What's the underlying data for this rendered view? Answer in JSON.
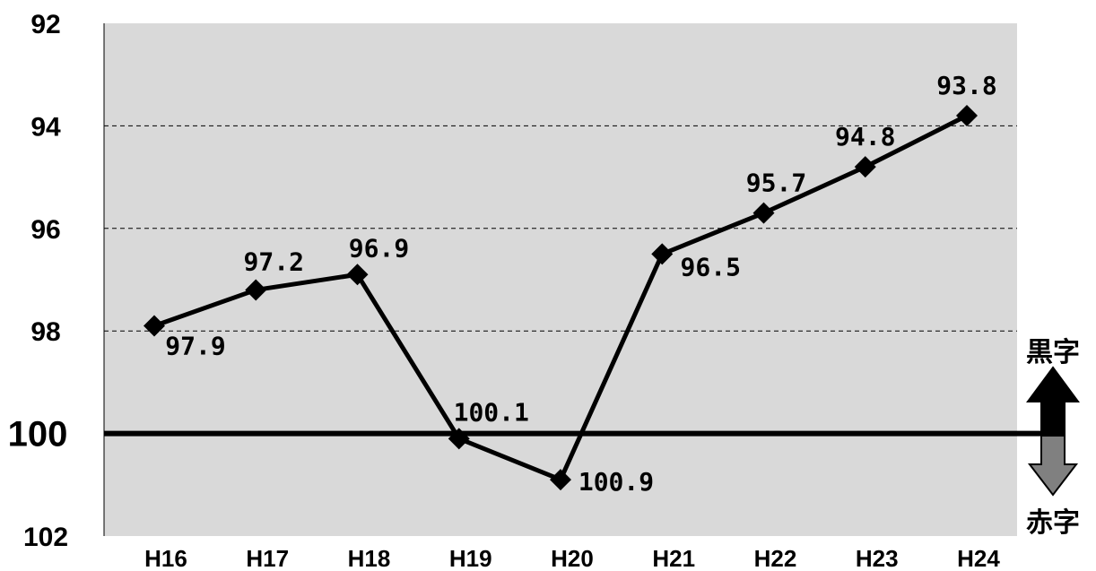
{
  "chart_data": {
    "type": "line",
    "categories": [
      "H16",
      "H17",
      "H18",
      "H19",
      "H20",
      "H21",
      "H22",
      "H23",
      "H24"
    ],
    "series": [
      {
        "values": [
          97.9,
          97.2,
          96.9,
          100.1,
          100.9,
          96.5,
          95.7,
          94.8,
          93.8
        ],
        "labels": [
          "97.9",
          "97.2",
          "96.9",
          "100.1",
          "100.9",
          "96.5",
          "95.7",
          "94.8",
          "93.8"
        ],
        "color": "#000000",
        "marker": "diamond"
      }
    ],
    "y_axis": {
      "ticks": [
        "92",
        "94",
        "96",
        "98",
        "100",
        "102"
      ],
      "range": [
        92,
        102
      ],
      "inverted": true
    },
    "reference_line": {
      "value": 100
    },
    "grid": "dashed horizontal",
    "plot_background": "#d9d9d9",
    "legend": {
      "up_label": "黒字",
      "down_label": "赤字",
      "up_color": "#000000",
      "down_color": "#808080",
      "placement": "right"
    }
  }
}
